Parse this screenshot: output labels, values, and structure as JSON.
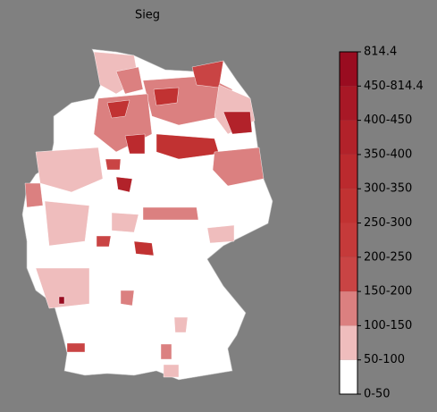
{
  "map": {
    "title": "Sieg",
    "legend": {
      "labels": [
        "0-50",
        "50-100",
        "100-150",
        "150-200",
        "200-250",
        "250-300",
        "300-350",
        "350-400",
        "400-450",
        "450-814.4",
        "814.4"
      ],
      "colors": [
        "#ffffff",
        "#efbdbd",
        "#db8080",
        "#c94444",
        "#c53a3a",
        "#c13232",
        "#bb2a2e",
        "#b2222a",
        "#a81826",
        "#990c20"
      ]
    }
  }
}
